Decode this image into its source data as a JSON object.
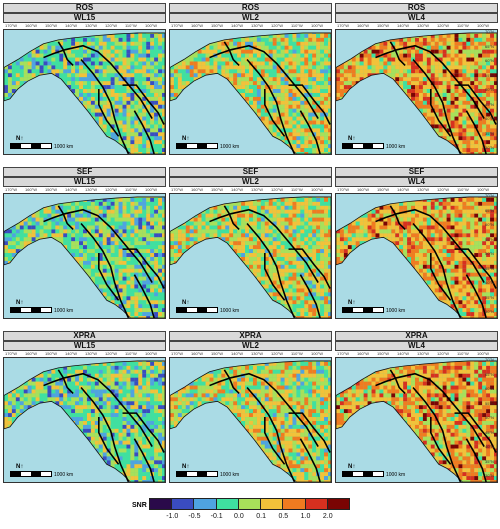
{
  "panels": [
    {
      "row": "ROS",
      "col": "WL15",
      "variant": 0
    },
    {
      "row": "ROS",
      "col": "WL2",
      "variant": 1
    },
    {
      "row": "ROS",
      "col": "WL4",
      "variant": 2
    },
    {
      "row": "SEF",
      "col": "WL15",
      "variant": 0
    },
    {
      "row": "SEF",
      "col": "WL2",
      "variant": 1
    },
    {
      "row": "SEF",
      "col": "WL4",
      "variant": 2
    },
    {
      "row": "XPRA",
      "col": "WL15",
      "variant": 0
    },
    {
      "row": "XPRA",
      "col": "WL2",
      "variant": 1
    },
    {
      "row": "XPRA",
      "col": "WL4",
      "variant": 2
    }
  ],
  "longitude_labels": [
    "170°W",
    "160°W",
    "150°W",
    "140°W",
    "130°W",
    "120°W",
    "110°W",
    "100°W"
  ],
  "latitude_labels": [
    "70°N",
    "65°N",
    "60°N",
    "55°N",
    "50°N",
    "45°N",
    "40°N",
    "35°N",
    "30°N"
  ],
  "scale_label": "1000 km",
  "north_label": "N",
  "legend": {
    "title": "SNR",
    "ticks": [
      "-1.0",
      "-0.5",
      "-0.1",
      "0.0",
      "0.1",
      "0.5",
      "1.0",
      "2.0"
    ],
    "colors": [
      "#2a0a4a",
      "#3a4cc0",
      "#4fa3e0",
      "#3fe0a0",
      "#a8e05a",
      "#f2c23a",
      "#f07b20",
      "#d7301f",
      "#7a0403"
    ]
  },
  "colors": {
    "ocean": "#aadbe5",
    "land_base": "#6bd19a"
  }
}
